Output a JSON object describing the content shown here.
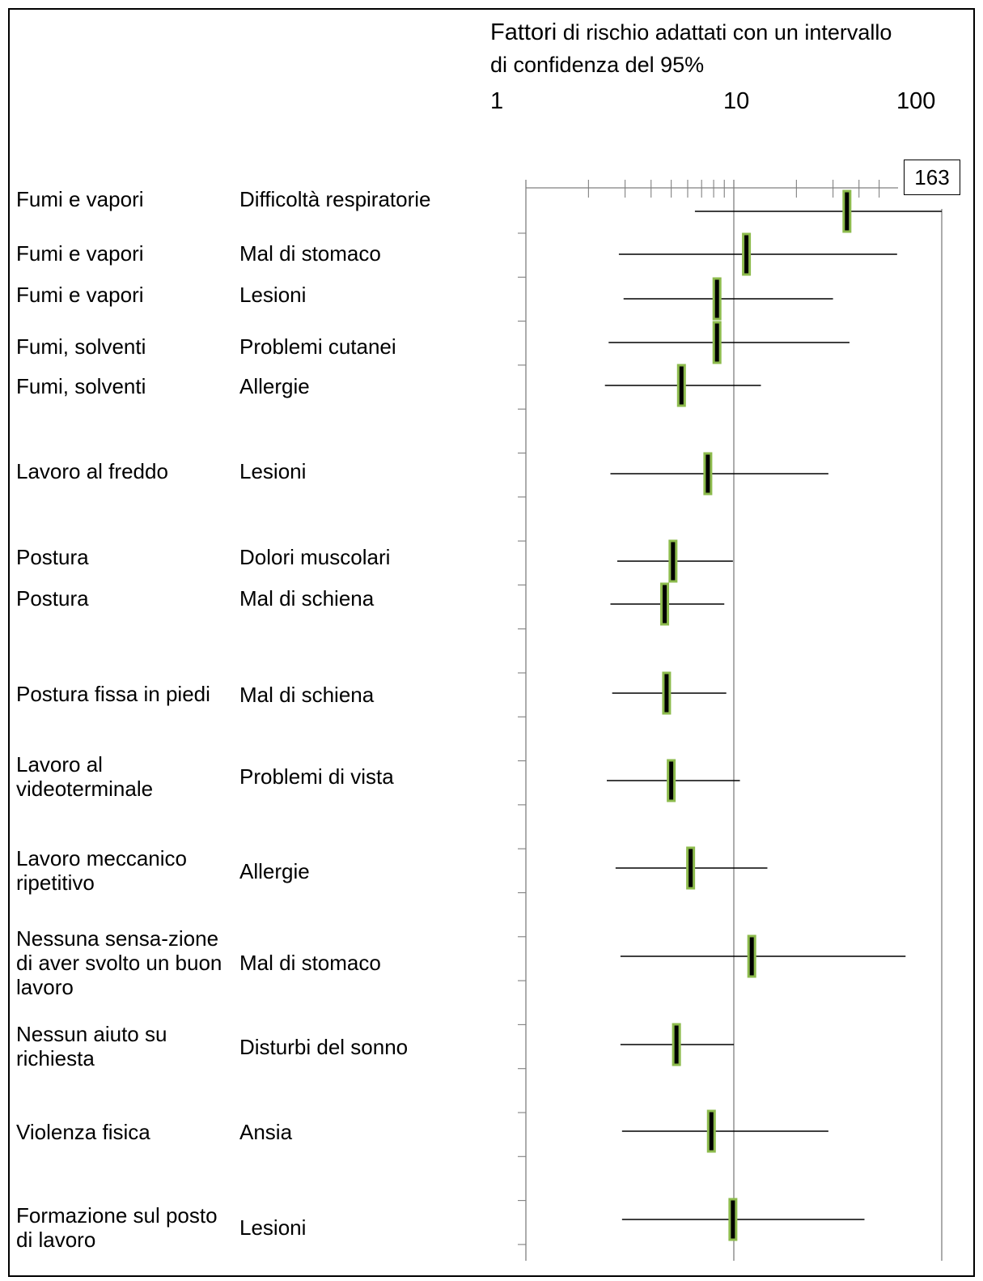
{
  "header": {
    "title_word": "Fattori",
    "title_rest": " di rischio adattati con un intervallo",
    "title_line2": "di confidenza del 95%",
    "scale_labels": [
      "1",
      "10",
      "100"
    ]
  },
  "overflow_label": "163",
  "colors": {
    "marker_fill": "#000000",
    "marker_outline": "#8dbb4d",
    "lines": "#000000",
    "axis": "#808080"
  },
  "chart_data": {
    "type": "forest",
    "x_scale": "log",
    "xlim": [
      1,
      100
    ],
    "xticks": [
      1,
      10,
      100
    ],
    "rows": [
      {
        "factor": "Fumi e vapori",
        "outcome": "Difficoltà respiratorie",
        "or": 35,
        "lo": 6.5,
        "hi": 100,
        "hi_label": "163"
      },
      {
        "factor": "Fumi e vapori",
        "outcome": "Mal di stomaco",
        "or": 11.5,
        "lo": 2.8,
        "hi": 61
      },
      {
        "factor": "Fumi e vapori",
        "outcome": "Lesioni",
        "or": 8.3,
        "lo": 2.95,
        "hi": 30
      },
      {
        "factor": "Fumi, solventi",
        "outcome": "Problemi cutanei",
        "or": 8.3,
        "lo": 2.5,
        "hi": 36
      },
      {
        "factor": "Fumi, solventi",
        "outcome": "Allergie",
        "or": 5.6,
        "lo": 2.4,
        "hi": 13.5
      },
      {
        "factor": "Lavoro al freddo",
        "outcome": "Lesioni",
        "or": 7.5,
        "lo": 2.55,
        "hi": 28.5
      },
      {
        "factor": "Postura",
        "outcome": "Dolori muscolari",
        "or": 5.1,
        "lo": 2.75,
        "hi": 9.9
      },
      {
        "factor": "Postura",
        "outcome": "Mal di schiena",
        "or": 4.65,
        "lo": 2.55,
        "hi": 9.0
      },
      {
        "factor": "Postura fissa in piedi",
        "outcome": "Mal di schiena",
        "or": 4.75,
        "lo": 2.6,
        "hi": 9.2
      },
      {
        "factor": "Lavoro al videoterminale",
        "outcome": "Problemi di vista",
        "or": 5.0,
        "lo": 2.45,
        "hi": 10.7
      },
      {
        "factor": "Lavoro meccanico ripetitivo",
        "outcome": "Allergie",
        "or": 6.2,
        "lo": 2.7,
        "hi": 14.5
      },
      {
        "factor": "Nessuna sensa-zione di aver svolto un buon lavoro",
        "outcome": "Mal di stomaco",
        "or": 12.2,
        "lo": 2.85,
        "hi": 67
      },
      {
        "factor": "Nessun aiuto su richiesta",
        "outcome": "Disturbi del sonno",
        "or": 5.3,
        "lo": 2.85,
        "hi": 10
      },
      {
        "factor": "Violenza fisica",
        "outcome": "Ansia",
        "or": 7.8,
        "lo": 2.9,
        "hi": 28.5
      },
      {
        "factor": "Formazione sul posto di lavoro",
        "outcome": "Lesioni",
        "or": 9.9,
        "lo": 2.9,
        "hi": 42.5
      }
    ]
  }
}
